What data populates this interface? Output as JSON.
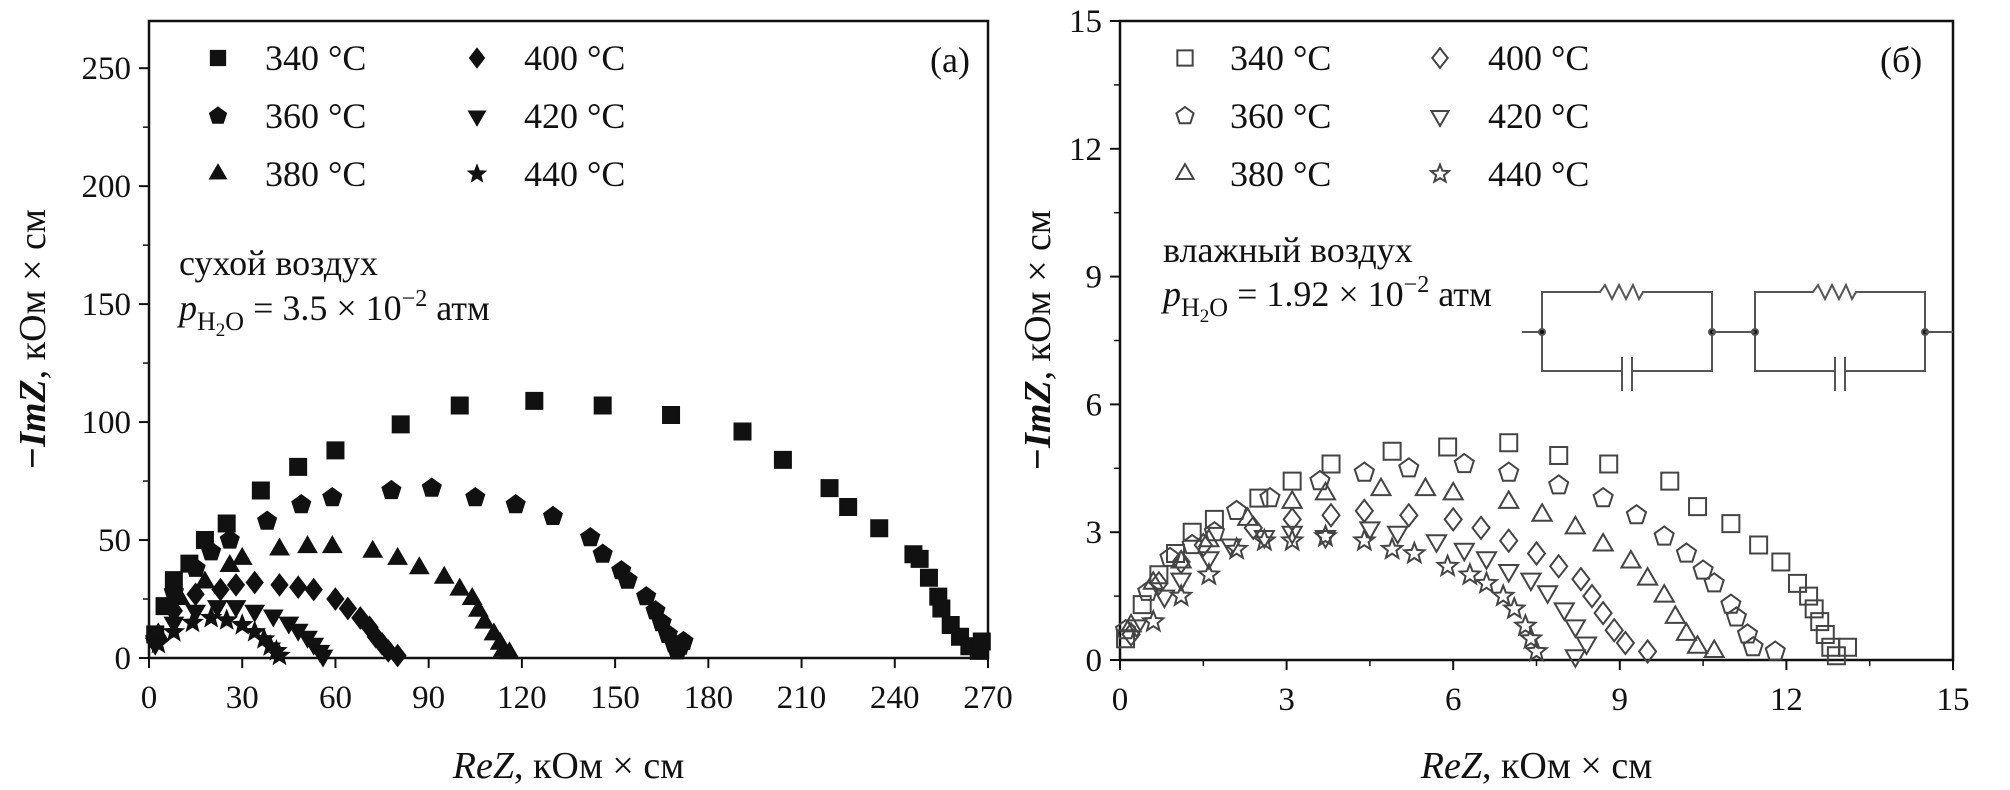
{
  "chart_data": [
    {
      "type": "scatter",
      "panel_label": "(а)",
      "xlabel_italic": "ReZ",
      "xlabel_rest": ", кОм × см",
      "ylabel_italic": "−ImZ",
      "ylabel_rest": ", кОм × см",
      "xlim": [
        0,
        270
      ],
      "ylim": [
        0,
        270
      ],
      "xticks": [
        "0",
        "30",
        "60",
        "90",
        "120",
        "150",
        "180",
        "210",
        "240",
        "270"
      ],
      "yticks": [
        "0",
        "50",
        "100",
        "150",
        "200",
        "250"
      ],
      "grid": false,
      "legend_position": "top-left",
      "marker_fill": "filled",
      "annotation": {
        "line1": "сухой воздух",
        "p": "p",
        "sub": "H",
        "sub2": "2",
        "sub3": "O",
        "eq": " = 3.5 × 10",
        "sup": "−2",
        "unit": " атм"
      },
      "series": [
        {
          "name": "340 °C",
          "marker": "square",
          "points": [
            [
              2,
              10
            ],
            [
              5,
              22
            ],
            [
              8,
              33
            ],
            [
              13,
              40
            ],
            [
              18,
              50
            ],
            [
              25,
              57
            ],
            [
              36,
              71
            ],
            [
              48,
              81
            ],
            [
              60,
              88
            ],
            [
              81,
              99
            ],
            [
              100,
              107
            ],
            [
              124,
              109
            ],
            [
              146,
              107
            ],
            [
              168,
              103
            ],
            [
              191,
              96
            ],
            [
              204,
              84
            ],
            [
              219,
              72
            ],
            [
              225,
              64
            ],
            [
              235,
              55
            ],
            [
              246,
              44
            ],
            [
              248,
              42
            ],
            [
              251,
              34
            ],
            [
              254,
              26
            ],
            [
              255,
              21
            ],
            [
              258,
              14
            ],
            [
              261,
              9
            ],
            [
              264,
              5
            ],
            [
              267,
              3
            ],
            [
              268,
              7
            ]
          ]
        },
        {
          "name": "360 °C",
          "marker": "pentagon",
          "points": [
            [
              2,
              8
            ],
            [
              8,
              28
            ],
            [
              15,
              38
            ],
            [
              20,
              45
            ],
            [
              26,
              50
            ],
            [
              38,
              58
            ],
            [
              49,
              65
            ],
            [
              59,
              68
            ],
            [
              78,
              71
            ],
            [
              91,
              72
            ],
            [
              105,
              68
            ],
            [
              118,
              65
            ],
            [
              130,
              60
            ],
            [
              142,
              51
            ],
            [
              146,
              44
            ],
            [
              152,
              37
            ],
            [
              154,
              33
            ],
            [
              160,
              26
            ],
            [
              163,
              20
            ],
            [
              165,
              15
            ],
            [
              167,
              10
            ],
            [
              169,
              6
            ],
            [
              170,
              3
            ],
            [
              171,
              5
            ],
            [
              172,
              7
            ]
          ]
        },
        {
          "name": "380 °C",
          "marker": "triangle",
          "points": [
            [
              3,
              10
            ],
            [
              10,
              25
            ],
            [
              18,
              32
            ],
            [
              26,
              39
            ],
            [
              30,
              42
            ],
            [
              42,
              46
            ],
            [
              51,
              47
            ],
            [
              59,
              47
            ],
            [
              72,
              45
            ],
            [
              80,
              42
            ],
            [
              87,
              38
            ],
            [
              95,
              34
            ],
            [
              100,
              29
            ],
            [
              104,
              25
            ],
            [
              106,
              20
            ],
            [
              108,
              15
            ],
            [
              111,
              10
            ],
            [
              113,
              6
            ],
            [
              114,
              3
            ],
            [
              116,
              2
            ]
          ]
        },
        {
          "name": "400 °C",
          "marker": "diamond",
          "points": [
            [
              2,
              8
            ],
            [
              8,
              20
            ],
            [
              15,
              27
            ],
            [
              23,
              29
            ],
            [
              28,
              31
            ],
            [
              34,
              32
            ],
            [
              42,
              31
            ],
            [
              48,
              30
            ],
            [
              53,
              29
            ],
            [
              60,
              25
            ],
            [
              64,
              21
            ],
            [
              68,
              17
            ],
            [
              71,
              13
            ],
            [
              73,
              9
            ],
            [
              75,
              6
            ],
            [
              77,
              3
            ],
            [
              80,
              1
            ]
          ]
        },
        {
          "name": "420 °C",
          "marker": "triangle-down",
          "points": [
            [
              2,
              6
            ],
            [
              8,
              15
            ],
            [
              15,
              20
            ],
            [
              22,
              22
            ],
            [
              28,
              22
            ],
            [
              34,
              20
            ],
            [
              40,
              18
            ],
            [
              45,
              15
            ],
            [
              48,
              12
            ],
            [
              51,
              9
            ],
            [
              53,
              6
            ],
            [
              55,
              3
            ],
            [
              56,
              1
            ]
          ]
        },
        {
          "name": "440 °C",
          "marker": "star",
          "points": [
            [
              3,
              6
            ],
            [
              8,
              11
            ],
            [
              14,
              15
            ],
            [
              20,
              17
            ],
            [
              25,
              16
            ],
            [
              30,
              14
            ],
            [
              34,
              11
            ],
            [
              37,
              8
            ],
            [
              39,
              5
            ],
            [
              41,
              3
            ],
            [
              42,
              1
            ]
          ]
        }
      ]
    },
    {
      "type": "scatter",
      "panel_label": "(б)",
      "xlabel_italic": "ReZ",
      "xlabel_rest": ", кОм × см",
      "ylabel_italic": "−ImZ",
      "ylabel_rest": ", кОм × см",
      "xlim": [
        0,
        15
      ],
      "ylim": [
        0,
        15
      ],
      "xticks": [
        "0",
        "3",
        "6",
        "9",
        "12",
        "15"
      ],
      "yticks": [
        "0",
        "3",
        "6",
        "9",
        "12",
        "15"
      ],
      "grid": false,
      "legend_position": "top-left",
      "marker_fill": "open",
      "inset": "equivalent circuit: two parallel R–C elements in series",
      "annotation": {
        "line1": "влажный воздух",
        "p": "p",
        "sub": "H",
        "sub2": "2",
        "sub3": "O",
        "eq": " = 1.92 × 10",
        "sup": "−2",
        "unit": " атм"
      },
      "series": [
        {
          "name": "340 °C",
          "marker": "square",
          "points": [
            [
              0.1,
              0.5
            ],
            [
              0.4,
              1.3
            ],
            [
              0.7,
              2.0
            ],
            [
              1.0,
              2.5
            ],
            [
              1.3,
              3.0
            ],
            [
              1.7,
              3.3
            ],
            [
              2.5,
              3.8
            ],
            [
              3.1,
              4.2
            ],
            [
              3.8,
              4.6
            ],
            [
              4.9,
              4.9
            ],
            [
              5.9,
              5.0
            ],
            [
              7.0,
              5.1
            ],
            [
              7.9,
              4.8
            ],
            [
              8.8,
              4.6
            ],
            [
              9.9,
              4.2
            ],
            [
              10.4,
              3.6
            ],
            [
              11.0,
              3.2
            ],
            [
              11.5,
              2.7
            ],
            [
              11.9,
              2.3
            ],
            [
              12.2,
              1.8
            ],
            [
              12.4,
              1.5
            ],
            [
              12.5,
              1.2
            ],
            [
              12.6,
              0.9
            ],
            [
              12.7,
              0.6
            ],
            [
              12.8,
              0.3
            ],
            [
              13.1,
              0.3
            ],
            [
              12.9,
              0.1
            ]
          ]
        },
        {
          "name": "360 °C",
          "marker": "pentagon",
          "points": [
            [
              0.1,
              0.7
            ],
            [
              0.5,
              1.6
            ],
            [
              0.9,
              2.4
            ],
            [
              1.3,
              2.7
            ],
            [
              1.7,
              3.0
            ],
            [
              2.1,
              3.5
            ],
            [
              2.7,
              3.8
            ],
            [
              3.6,
              4.2
            ],
            [
              4.4,
              4.4
            ],
            [
              5.2,
              4.5
            ],
            [
              6.2,
              4.6
            ],
            [
              7.0,
              4.4
            ],
            [
              7.9,
              4.1
            ],
            [
              8.7,
              3.8
            ],
            [
              9.3,
              3.4
            ],
            [
              9.8,
              2.9
            ],
            [
              10.2,
              2.5
            ],
            [
              10.5,
              2.1
            ],
            [
              10.7,
              1.8
            ],
            [
              11.0,
              1.3
            ],
            [
              11.1,
              1.0
            ],
            [
              11.3,
              0.6
            ],
            [
              11.4,
              0.3
            ],
            [
              11.8,
              0.2
            ]
          ]
        },
        {
          "name": "380 °C",
          "marker": "triangle",
          "points": [
            [
              0.2,
              0.8
            ],
            [
              0.6,
              1.8
            ],
            [
              1.1,
              2.3
            ],
            [
              1.6,
              2.8
            ],
            [
              2.3,
              3.3
            ],
            [
              3.1,
              3.7
            ],
            [
              3.7,
              3.9
            ],
            [
              4.7,
              4.0
            ],
            [
              5.5,
              4.0
            ],
            [
              6.0,
              3.9
            ],
            [
              7.0,
              3.7
            ],
            [
              7.6,
              3.4
            ],
            [
              8.2,
              3.1
            ],
            [
              8.7,
              2.7
            ],
            [
              9.2,
              2.3
            ],
            [
              9.5,
              1.9
            ],
            [
              9.8,
              1.5
            ],
            [
              10.0,
              1.0
            ],
            [
              10.2,
              0.6
            ],
            [
              10.4,
              0.3
            ],
            [
              10.7,
              0.2
            ]
          ]
        },
        {
          "name": "400 °C",
          "marker": "diamond",
          "points": [
            [
              0.2,
              0.6
            ],
            [
              0.7,
              1.8
            ],
            [
              1.1,
              2.3
            ],
            [
              1.5,
              2.7
            ],
            [
              2.4,
              3.1
            ],
            [
              3.1,
              3.3
            ],
            [
              3.8,
              3.4
            ],
            [
              4.4,
              3.5
            ],
            [
              5.2,
              3.4
            ],
            [
              6.0,
              3.3
            ],
            [
              6.5,
              3.1
            ],
            [
              7.0,
              2.8
            ],
            [
              7.5,
              2.5
            ],
            [
              7.9,
              2.2
            ],
            [
              8.3,
              1.9
            ],
            [
              8.5,
              1.5
            ],
            [
              8.7,
              1.1
            ],
            [
              8.9,
              0.7
            ],
            [
              9.1,
              0.4
            ],
            [
              9.5,
              0.2
            ]
          ]
        },
        {
          "name": "420 °C",
          "marker": "triangle-down",
          "points": [
            [
              0.3,
              0.8
            ],
            [
              0.8,
              1.5
            ],
            [
              1.1,
              1.9
            ],
            [
              1.6,
              2.4
            ],
            [
              2.0,
              2.7
            ],
            [
              2.6,
              2.9
            ],
            [
              3.1,
              3.0
            ],
            [
              3.7,
              2.9
            ],
            [
              4.5,
              3.1
            ],
            [
              5.0,
              3.0
            ],
            [
              5.7,
              2.8
            ],
            [
              6.2,
              2.6
            ],
            [
              6.6,
              2.4
            ],
            [
              7.0,
              2.1
            ],
            [
              7.4,
              1.9
            ],
            [
              7.7,
              1.6
            ],
            [
              8.0,
              1.2
            ],
            [
              8.2,
              0.8
            ],
            [
              8.4,
              0.4
            ],
            [
              8.2,
              0.1
            ]
          ]
        },
        {
          "name": "440 °C",
          "marker": "star",
          "points": [
            [
              0.6,
              0.9
            ],
            [
              1.1,
              1.5
            ],
            [
              1.6,
              2.0
            ],
            [
              2.1,
              2.6
            ],
            [
              2.6,
              2.8
            ],
            [
              3.1,
              2.8
            ],
            [
              3.7,
              2.9
            ],
            [
              4.4,
              2.8
            ],
            [
              4.9,
              2.6
            ],
            [
              5.3,
              2.5
            ],
            [
              5.9,
              2.2
            ],
            [
              6.3,
              2.0
            ],
            [
              6.6,
              1.8
            ],
            [
              6.9,
              1.5
            ],
            [
              7.1,
              1.2
            ],
            [
              7.3,
              0.8
            ],
            [
              7.4,
              0.5
            ],
            [
              7.5,
              0.2
            ]
          ]
        }
      ]
    }
  ],
  "colors": {
    "ink": "#111111",
    "open_marker_stroke": "#444444",
    "circuit": "#555555"
  }
}
